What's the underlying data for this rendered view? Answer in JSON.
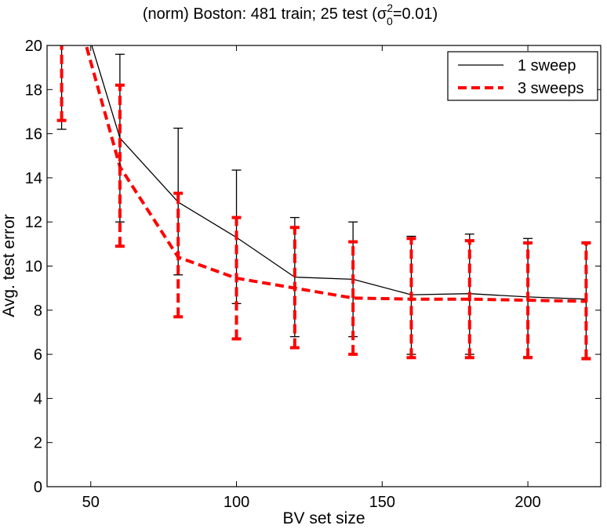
{
  "chart_data": {
    "type": "line",
    "title": {
      "prefix": "(norm)  Boston: 481 train; 25 test (",
      "sigma": "σ",
      "sup": "2",
      "sub": "0",
      "suffix": "=0.01)"
    },
    "xlabel": "BV set size",
    "ylabel": "Avg. test error",
    "xlim": [
      35,
      225
    ],
    "ylim": [
      0,
      20
    ],
    "xticks": [
      50,
      100,
      150,
      200
    ],
    "yticks": [
      0,
      2,
      4,
      6,
      8,
      10,
      12,
      14,
      16,
      18,
      20
    ],
    "x": [
      40,
      60,
      80,
      100,
      120,
      140,
      160,
      180,
      200,
      220
    ],
    "legend_position": "top-right",
    "series": [
      {
        "name": "1 sweep",
        "color": "#000000",
        "style": "solid",
        "values": [
          24.5,
          15.8,
          12.9,
          11.3,
          9.5,
          9.4,
          8.7,
          8.75,
          8.6,
          8.5
        ],
        "err_low": [
          16.2,
          12.0,
          9.6,
          8.3,
          6.8,
          6.8,
          6.0,
          6.0,
          5.9,
          5.85
        ],
        "err_high": [
          24.5,
          19.6,
          16.25,
          14.35,
          12.2,
          12.0,
          11.35,
          11.45,
          11.25,
          11.1
        ]
      },
      {
        "name": "3 sweeps",
        "color": "#ff0000",
        "style": "dashed",
        "values": [
          24.0,
          14.5,
          10.4,
          9.45,
          9.0,
          8.55,
          8.5,
          8.5,
          8.45,
          8.4
        ],
        "err_low": [
          16.6,
          10.9,
          7.7,
          6.7,
          6.3,
          6.0,
          5.85,
          5.85,
          5.85,
          5.8
        ],
        "err_high": [
          24.0,
          18.2,
          13.3,
          12.2,
          11.75,
          11.1,
          11.25,
          11.15,
          11.05,
          11.05
        ]
      }
    ]
  }
}
